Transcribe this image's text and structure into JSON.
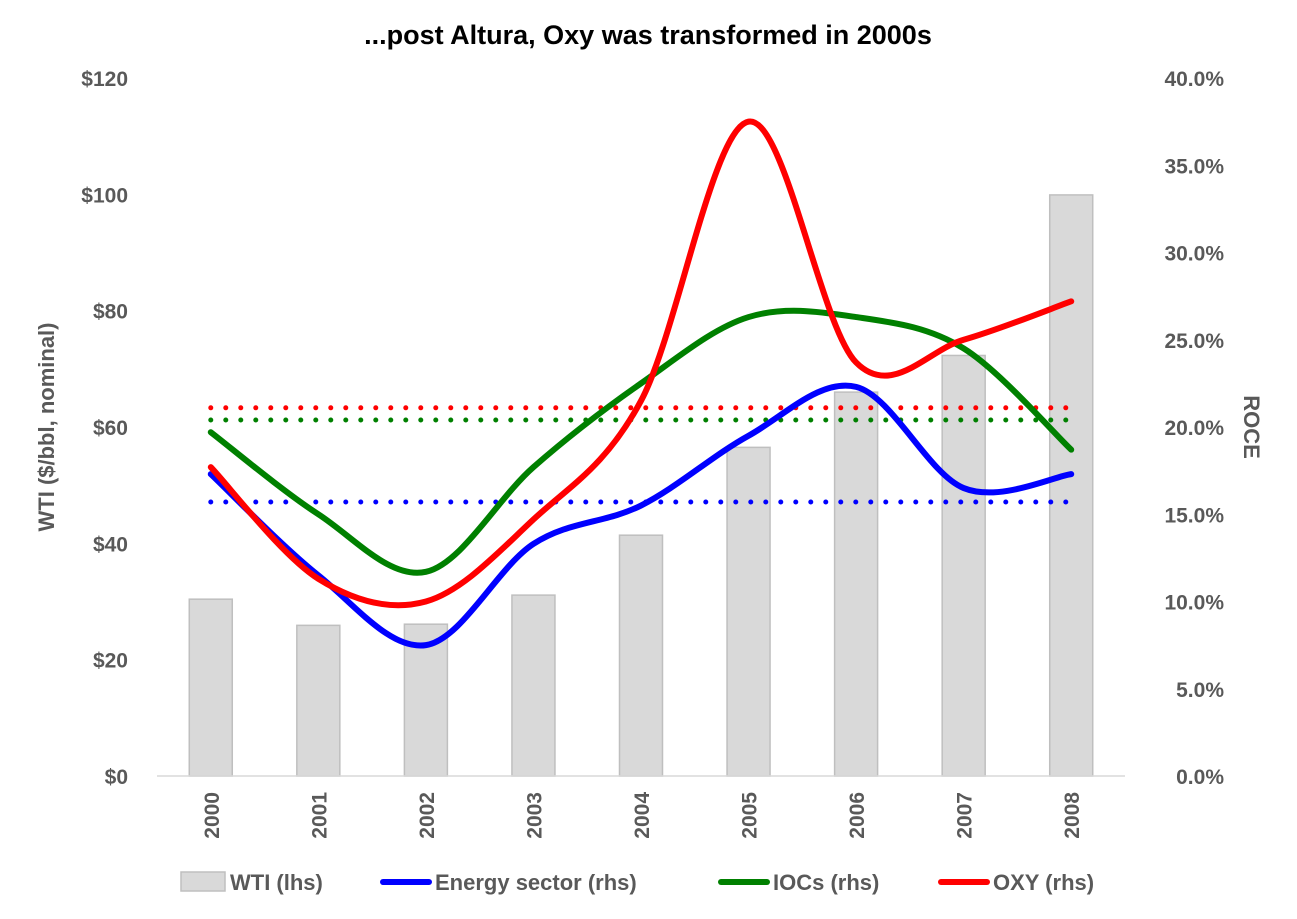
{
  "chart_data": {
    "type": "bar+line",
    "title": "...post Altura, Oxy was transformed in 2000s",
    "categories": [
      "2000",
      "2001",
      "2002",
      "2003",
      "2004",
      "2005",
      "2006",
      "2007",
      "2008"
    ],
    "y_left": {
      "label": "WTI ($/bbl, nominal)",
      "range": [
        0,
        120
      ],
      "ticks": [
        0,
        20,
        40,
        60,
        80,
        100,
        120
      ],
      "tick_labels": [
        "$0",
        "$20",
        "$40",
        "$60",
        "$80",
        "$100",
        "$120"
      ]
    },
    "y_right": {
      "label": "ROCE",
      "range": [
        0,
        40
      ],
      "ticks": [
        0,
        5,
        10,
        15,
        20,
        25,
        30,
        35,
        40
      ],
      "tick_labels": [
        "0.0%",
        "5.0%",
        "10.0%",
        "15.0%",
        "20.0%",
        "25.0%",
        "30.0%",
        "35.0%",
        "40.0%"
      ]
    },
    "bars": {
      "name": "WTI (lhs)",
      "axis": "left",
      "color": "#d9d9d9",
      "border": "#bfbfbf",
      "values": [
        30.4,
        25.9,
        26.1,
        31.1,
        41.4,
        56.5,
        66.0,
        72.3,
        99.9
      ]
    },
    "series": [
      {
        "name": "Energy sector (rhs)",
        "axis": "right",
        "color": "#0000ff",
        "values": [
          17.3,
          11.5,
          7.5,
          13.3,
          15.5,
          19.5,
          22.3,
          16.5,
          17.3
        ],
        "average": 15.7
      },
      {
        "name": "IOCs (rhs)",
        "axis": "right",
        "color": "#008000",
        "values": [
          19.7,
          15.0,
          11.7,
          17.7,
          22.5,
          26.3,
          26.3,
          24.5,
          18.7
        ],
        "average": 20.4
      },
      {
        "name": "OXY (rhs)",
        "axis": "right",
        "color": "#ff0000",
        "values": [
          17.7,
          11.3,
          10.0,
          14.7,
          21.5,
          37.5,
          23.7,
          25.0,
          27.2
        ],
        "average": 21.1
      }
    ],
    "legend": "bottom",
    "grid": false
  }
}
